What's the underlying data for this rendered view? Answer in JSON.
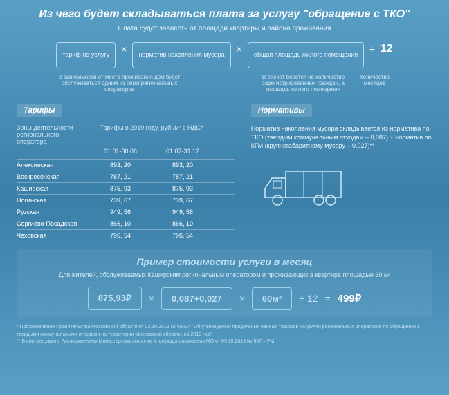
{
  "header": {
    "title": "Из чего будет складываться плата за услугу \"обращение с ТКО\"",
    "subtitle": "Плата будет зависеть от площади квартиры и района проживания"
  },
  "formula": {
    "box1": "тариф на\nуслугу",
    "box2": "норматив\nнакопления мусора",
    "box3": "общая площадь\nжилого помещения",
    "divisor": "12",
    "note1": "В зависимости от места проживания дом будет обслуживаться одним из семи региональных операторов",
    "note3": "В расчет берется не количество зарегистрированных граждан, а площадь жилого помещения",
    "note4": "Количество месяцев"
  },
  "tariffs": {
    "header": "Тарифы",
    "col1": "Зоны деятельности регионального оператора",
    "col2": "Тарифы в 2019 году, руб./м² с НДС*",
    "period1": "01.01-30.06",
    "period2": "01.07-31.12",
    "rows": [
      {
        "name": "Алексинская",
        "v1": "893, 20",
        "v2": "893, 20"
      },
      {
        "name": "Воскресенская",
        "v1": "787, 21",
        "v2": "787, 21"
      },
      {
        "name": "Каширская",
        "v1": "875, 93",
        "v2": "875, 93"
      },
      {
        "name": "Ногинская",
        "v1": "739, 67",
        "v2": "739, 67"
      },
      {
        "name": "Рузская",
        "v1": "949, 56",
        "v2": "949, 56"
      },
      {
        "name": "Сергиево-Посадская",
        "v1": "866, 10",
        "v2": "866, 10"
      },
      {
        "name": "Чеховская",
        "v1": "796, 54",
        "v2": "796, 54"
      }
    ]
  },
  "norms": {
    "header": "Нормативы",
    "text": "Норматив накопления мусора складывается из  норматива по ТКО (твердым коммунальным отходам – 0,087) + норматив по КГМ (крупногабаритному мусору – 0,027)**"
  },
  "example": {
    "title": "Пример стоимости услуги в месяц",
    "subtitle": "Для жителей, обслуживаемых Каширским региональным оператором и проживающих в квартире площадью 60 м²",
    "v1": "875,93₽",
    "v2": "0,087+0,027",
    "v3": "60м²",
    "div": "÷ 12",
    "eq": "=",
    "result": "499₽"
  },
  "footnotes": {
    "f1": "* Постановление Правительства Московской области от 02.10.2018 № 69034 \"Об утверждении предельных единых тарифов на услуги региональных операторов по обращению с твердыми коммунальными отходами на территории Московской области, на 2019 год\"",
    "f2": "** В соответствии с Распоряжением Министерства экологии и природопользования МО от 09.10.2018 № 607 – РМ"
  },
  "colors": {
    "bg_top": "#5a9fc5",
    "bg_mid": "#3a7fa8",
    "accent": "#bce0f5",
    "border": "#b8d9ec"
  }
}
